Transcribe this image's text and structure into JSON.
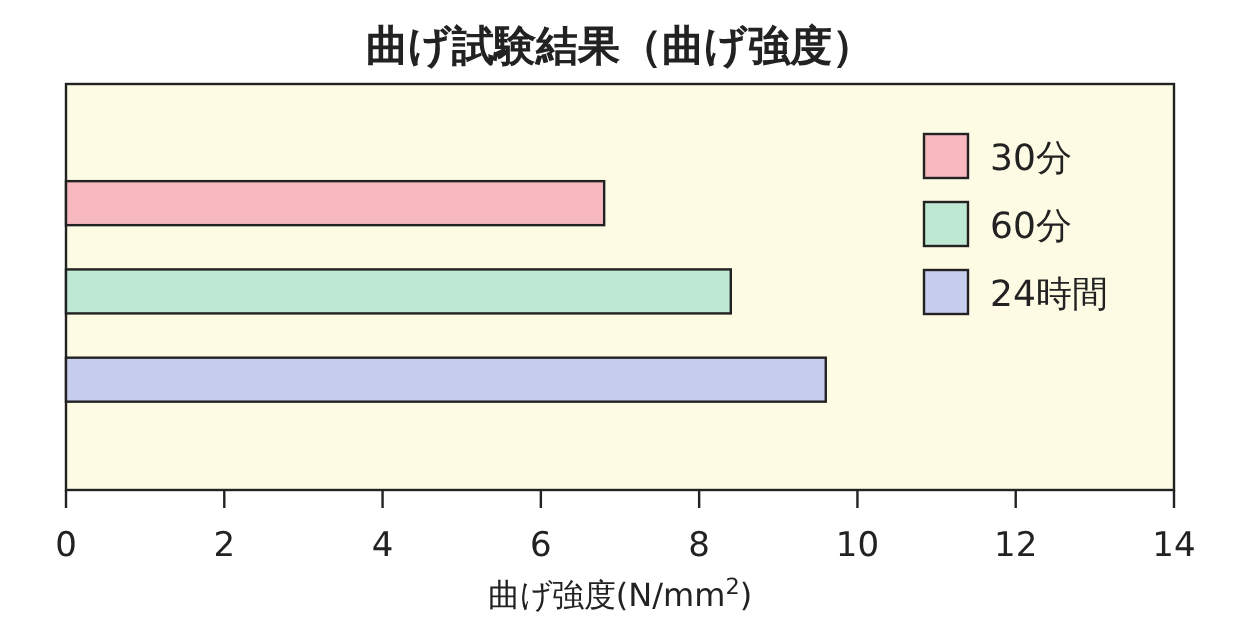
{
  "chart_data": {
    "type": "bar",
    "orientation": "horizontal",
    "title": "曲げ試験結果（曲げ強度）",
    "xlabel": "曲げ強度(N/mm$^{2}$)",
    "categories": [
      null,
      null,
      null
    ],
    "series": [
      {
        "name": "30分",
        "color": "#f7b8bf",
        "values": [
          6.8,
          null,
          null
        ]
      },
      {
        "name": "60分",
        "color": "#bfe8d4",
        "values": [
          null,
          8.4,
          null
        ]
      },
      {
        "name": "24時間",
        "color": "#c7cdef",
        "values": [
          null,
          null,
          9.6
        ]
      }
    ],
    "stacked": true,
    "xlim": [
      0,
      14
    ],
    "xticks": [
      0,
      2,
      4,
      6,
      8,
      10,
      12,
      14
    ],
    "legend": "top right",
    "grid": false
  }
}
